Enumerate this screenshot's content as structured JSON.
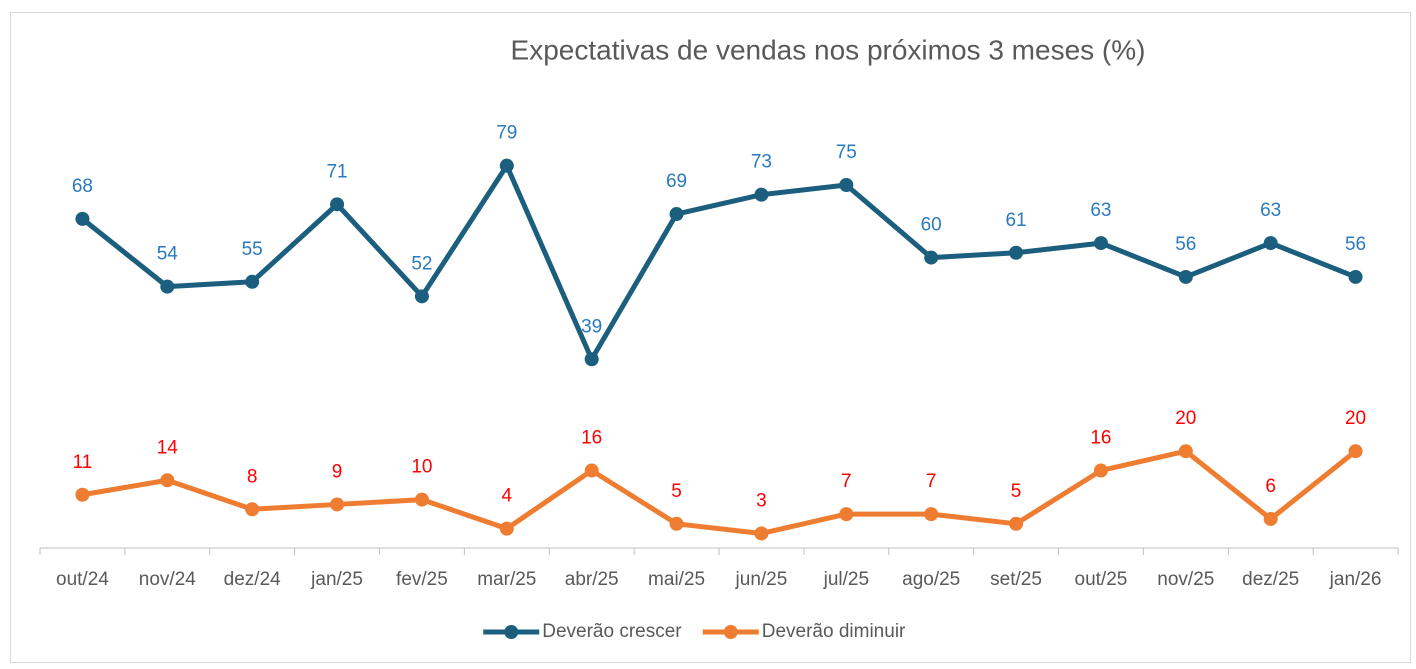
{
  "chart_data": {
    "type": "line",
    "title": "Expectativas de vendas nos próximos 3 meses (%)",
    "categories": [
      "out/24",
      "nov/24",
      "dez/24",
      "jan/25",
      "fev/25",
      "mar/25",
      "abr/25",
      "mai/25",
      "jun/25",
      "jul/25",
      "ago/25",
      "set/25",
      "out/25",
      "nov/25",
      "dez/25",
      "jan/26"
    ],
    "series": [
      {
        "name": "Deverão crescer",
        "color": "#1b5e7e",
        "label_color": "#2a7abf",
        "values": [
          68,
          54,
          55,
          71,
          52,
          79,
          39,
          69,
          73,
          75,
          60,
          61,
          63,
          56,
          63,
          56
        ]
      },
      {
        "name": "Deverão diminuir",
        "color": "#ee7d31",
        "label_color": "#ff0000",
        "values": [
          11,
          14,
          8,
          9,
          10,
          4,
          16,
          5,
          3,
          7,
          7,
          5,
          16,
          20,
          6,
          20
        ]
      }
    ],
    "ylim": [
      0,
      100
    ],
    "legend": "bottom"
  }
}
